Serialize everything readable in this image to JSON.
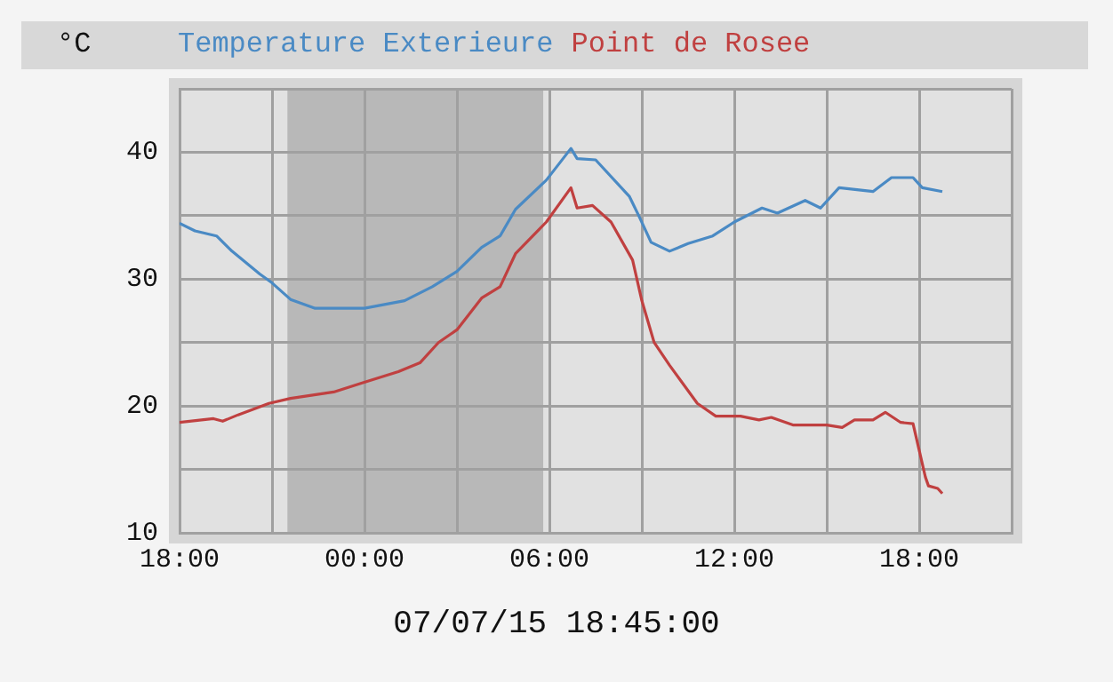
{
  "chart_data": {
    "type": "line",
    "ylabel": "°C",
    "legend": "top",
    "grid": true,
    "marker": "none",
    "line_style": "solid",
    "annotations": [
      "07/07/15 18:45:00"
    ],
    "xlim": [
      "--07-06T18:00",
      "--07-07T21:00"
    ],
    "xticks": [
      {
        "value": "--07-06T18:00",
        "label": "18:00"
      },
      {
        "value": "--07-06T21:00",
        "label": null
      },
      {
        "value": "--07-07T00:00",
        "label": "00:00"
      },
      {
        "value": "--07-07T03:00",
        "label": null
      },
      {
        "value": "--07-07T06:00",
        "label": "06:00"
      },
      {
        "value": "--07-07T09:00",
        "label": null
      },
      {
        "value": "--07-07T12:00",
        "label": "12:00"
      },
      {
        "value": "--07-07T15:00",
        "label": null
      },
      {
        "value": "--07-07T18:00",
        "label": "18:00"
      },
      {
        "value": "--07-07T21:00",
        "label": null
      }
    ],
    "ylim": [
      10,
      45
    ],
    "yticks": [
      10,
      {
        "value": 15,
        "label": null
      },
      20,
      {
        "value": 25,
        "label": null
      },
      30,
      {
        "value": 35,
        "label": null
      },
      40,
      {
        "value": 45,
        "label": null
      }
    ],
    "bands": [
      {
        "axis": "x",
        "from": "--07-06T21:30",
        "to": "--07-07T05:48",
        "color": "#b8b8b8"
      }
    ],
    "series": [
      {
        "name": "Temperature Exterieure",
        "color": "#4a8ac4",
        "x": [
          "--07-06T18:00",
          "--07-06T18:30",
          "--07-06T19:12",
          "--07-06T19:42",
          "--07-06T20:36",
          "--07-06T21:00",
          "--07-06T21:36",
          "--07-06T22:24",
          "--07-07T00:00",
          "--07-07T01:18",
          "--07-07T02:12",
          "--07-07T03:00",
          "--07-07T03:48",
          "--07-07T04:24",
          "--07-07T04:54",
          "--07-07T05:54",
          "--07-07T06:42",
          "--07-07T06:54",
          "--07-07T07:30",
          "--07-07T08:36",
          "--07-07T08:54",
          "--07-07T09:18",
          "--07-07T09:54",
          "--07-07T10:30",
          "--07-07T11:18",
          "--07-07T12:00",
          "--07-07T12:54",
          "--07-07T13:24",
          "--07-07T14:18",
          "--07-07T14:48",
          "--07-07T15:24",
          "--07-07T16:30",
          "--07-07T17:06",
          "--07-07T17:48",
          "--07-07T18:06",
          "--07-07T18:45"
        ],
        "values": [
          34.4,
          33.8,
          33.4,
          32.2,
          30.4,
          29.7,
          28.4,
          27.7,
          27.7,
          28.3,
          29.4,
          30.6,
          32.5,
          33.4,
          35.5,
          37.8,
          40.3,
          39.5,
          39.4,
          36.5,
          35,
          32.9,
          32.2,
          32.8,
          33.4,
          34.5,
          35.6,
          35.2,
          36.2,
          35.6,
          37.2,
          36.9,
          38,
          38,
          37.2,
          36.9
        ]
      },
      {
        "name": "Point de Rosee",
        "color": "#c04040",
        "x": [
          "--07-06T18:00",
          "--07-06T19:06",
          "--07-06T19:24",
          "--07-06T19:54",
          "--07-06T20:54",
          "--07-06T21:36",
          "--07-06T23:00",
          "--07-06T23:54",
          "--07-07T01:06",
          "--07-07T01:48",
          "--07-07T02:24",
          "--07-07T03:00",
          "--07-07T03:48",
          "--07-07T04:24",
          "--07-07T04:54",
          "--07-07T05:54",
          "--07-07T06:42",
          "--07-07T06:54",
          "--07-07T07:24",
          "--07-07T08:00",
          "--07-07T08:42",
          "--07-07T09:00",
          "--07-07T09:24",
          "--07-07T09:54",
          "--07-07T10:48",
          "--07-07T11:24",
          "--07-07T12:12",
          "--07-07T12:48",
          "--07-07T13:12",
          "--07-07T13:54",
          "--07-07T15:00",
          "--07-07T15:30",
          "--07-07T15:54",
          "--07-07T16:30",
          "--07-07T16:54",
          "--07-07T17:24",
          "--07-07T17:48",
          "--07-07T18:12",
          "--07-07T18:18",
          "--07-07T18:36",
          "--07-07T18:45"
        ],
        "values": [
          18.7,
          19,
          18.8,
          19.3,
          20.2,
          20.6,
          21.1,
          21.8,
          22.7,
          23.4,
          25,
          26,
          28.5,
          29.4,
          32,
          34.5,
          37.2,
          35.6,
          35.8,
          34.5,
          31.5,
          28.3,
          25,
          23.2,
          20.2,
          19.2,
          19.2,
          18.9,
          19.1,
          18.5,
          18.5,
          18.3,
          18.9,
          18.9,
          19.5,
          18.7,
          18.6,
          14.4,
          13.7,
          13.5,
          13.1
        ]
      }
    ]
  }
}
